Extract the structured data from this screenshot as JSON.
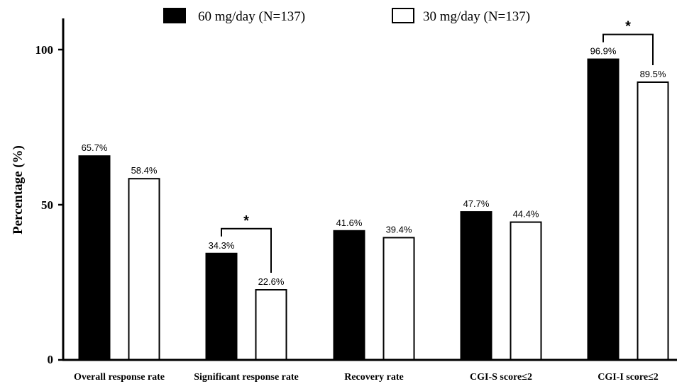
{
  "chart_data": {
    "type": "bar",
    "ylabel": "Percentage (%)",
    "ylim": [
      0,
      100
    ],
    "yticks": [
      "0",
      "50",
      "100"
    ],
    "grid": false,
    "legend_position": "top",
    "categories": [
      "Overall response rate",
      "Significant response rate",
      "Recovery rate",
      "CGI-S score≤2",
      "CGI-I score≤2"
    ],
    "series": [
      {
        "name": "60 mg/day (N=137)",
        "color": "#000000",
        "values": [
          65.7,
          34.3,
          41.6,
          47.7,
          96.9
        ],
        "labels": [
          "65.7%",
          "34.3%",
          "41.6%",
          "47.7%",
          "96.9%"
        ]
      },
      {
        "name": "30 mg/day (N=137)",
        "color": "#ffffff",
        "values": [
          58.4,
          22.6,
          39.4,
          44.4,
          89.5
        ],
        "labels": [
          "58.4%",
          "22.6%",
          "39.4%",
          "44.4%",
          "89.5%"
        ]
      }
    ],
    "significance": [
      {
        "category_index": 1,
        "marker": "*"
      },
      {
        "category_index": 4,
        "marker": "*"
      }
    ]
  }
}
